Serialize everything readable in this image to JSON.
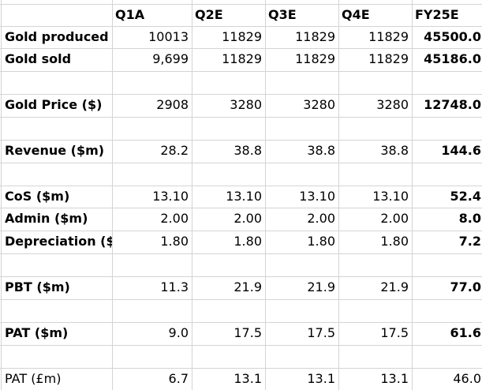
{
  "columns": [
    "Q1A",
    "Q2E",
    "Q3E",
    "Q4E",
    "FY25E"
  ],
  "rows": {
    "gold_produced": {
      "label": "Gold produced",
      "values": [
        "10013",
        "11829",
        "11829",
        "11829",
        "45500.0"
      ]
    },
    "gold_sold": {
      "label": "Gold sold",
      "values": [
        "9,699",
        "11829",
        "11829",
        "11829",
        "45186.0"
      ]
    },
    "gold_price": {
      "label": "Gold Price ($)",
      "values": [
        "2908",
        "3280",
        "3280",
        "3280",
        "12748.0"
      ]
    },
    "revenue": {
      "label": "Revenue ($m)",
      "values": [
        "28.2",
        "38.8",
        "38.8",
        "38.8",
        "144.6"
      ]
    },
    "cos": {
      "label": "CoS ($m)",
      "values": [
        "13.10",
        "13.10",
        "13.10",
        "13.10",
        "52.4"
      ]
    },
    "admin": {
      "label": "Admin ($m)",
      "values": [
        "2.00",
        "2.00",
        "2.00",
        "2.00",
        "8.0"
      ]
    },
    "depreciation": {
      "label": "Depreciation ($r",
      "values": [
        "1.80",
        "1.80",
        "1.80",
        "1.80",
        "7.2"
      ]
    },
    "pbt": {
      "label": "PBT ($m)",
      "values": [
        "11.3",
        "21.9",
        "21.9",
        "21.9",
        "77.0"
      ]
    },
    "pat_usd": {
      "label": "PAT ($m)",
      "values": [
        "9.0",
        "17.5",
        "17.5",
        "17.5",
        "61.6"
      ]
    },
    "pat_gbp": {
      "label": "PAT (£m)",
      "values": [
        "6.7",
        "13.1",
        "13.1",
        "13.1",
        "46.0"
      ]
    }
  }
}
